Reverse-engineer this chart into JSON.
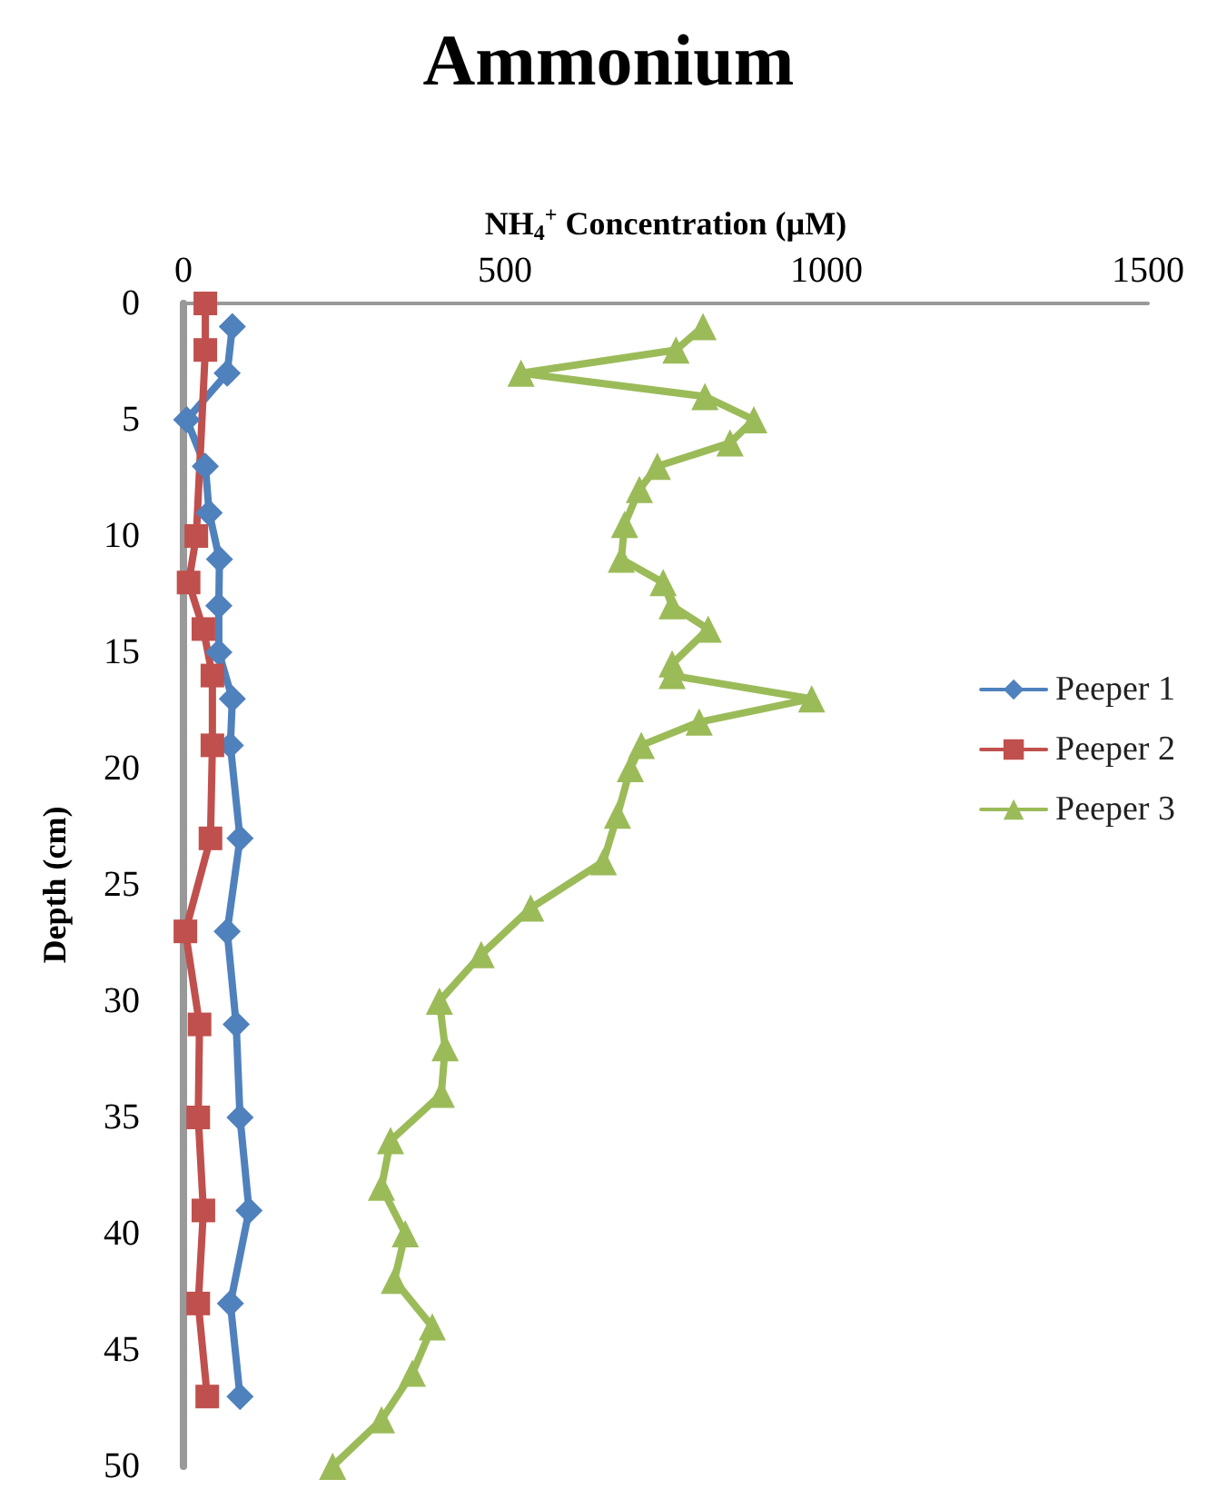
{
  "chart_data": {
    "type": "line",
    "title": "Ammonium",
    "xlabel": "NH$_{4}$$^{+}$ Concentration (µM)",
    "ylabel": "Depth (cm)",
    "xlim": [
      0,
      1500
    ],
    "xticks": [
      0,
      500,
      1000,
      1500
    ],
    "ylim": [
      50,
      0
    ],
    "yticks": [
      0,
      5,
      10,
      15,
      20,
      25,
      30,
      35,
      40,
      45,
      50
    ],
    "grid": false,
    "legend": "right",
    "line_style": "solid",
    "series": [
      {
        "name": "Peeper 1",
        "color": "#4f81bd",
        "marker": "diamond",
        "x": [
          76,
          68,
          5,
          34,
          40,
          56,
          55,
          55,
          76,
          73,
          88,
          68,
          82,
          88,
          102,
          73,
          88
        ],
        "values": [
          1,
          3,
          5,
          7,
          9,
          11,
          13,
          15,
          17,
          19,
          23,
          27,
          31,
          35,
          39,
          43,
          47
        ]
      },
      {
        "name": "Peeper 2",
        "color": "#c0504d",
        "marker": "square",
        "x": [
          34,
          34,
          20,
          8,
          31,
          45,
          45,
          42,
          3,
          25,
          23,
          31,
          23,
          37
        ],
        "values": [
          0,
          2,
          10,
          12,
          14,
          16,
          19,
          23,
          27,
          31,
          35,
          39,
          43,
          47
        ]
      },
      {
        "name": "Peeper 3",
        "color": "#9bbb59",
        "marker": "triangle",
        "x": [
          808,
          766,
          525,
          811,
          887,
          850,
          737,
          709,
          686,
          681,
          746,
          760,
          816,
          760,
          760,
          977,
          802,
          712,
          695,
          675,
          653,
          540,
          463,
          398,
          407,
          401,
          322,
          308,
          345,
          328,
          387,
          356,
          308,
          232
        ],
        "values": [
          1,
          2,
          3,
          4,
          5,
          6,
          7,
          8,
          9.5,
          11,
          12,
          13,
          14,
          15.5,
          16,
          17,
          18,
          19,
          20,
          22,
          24,
          26,
          28,
          30,
          32,
          34,
          36,
          38,
          40,
          42,
          44,
          46,
          48,
          50
        ]
      }
    ]
  }
}
